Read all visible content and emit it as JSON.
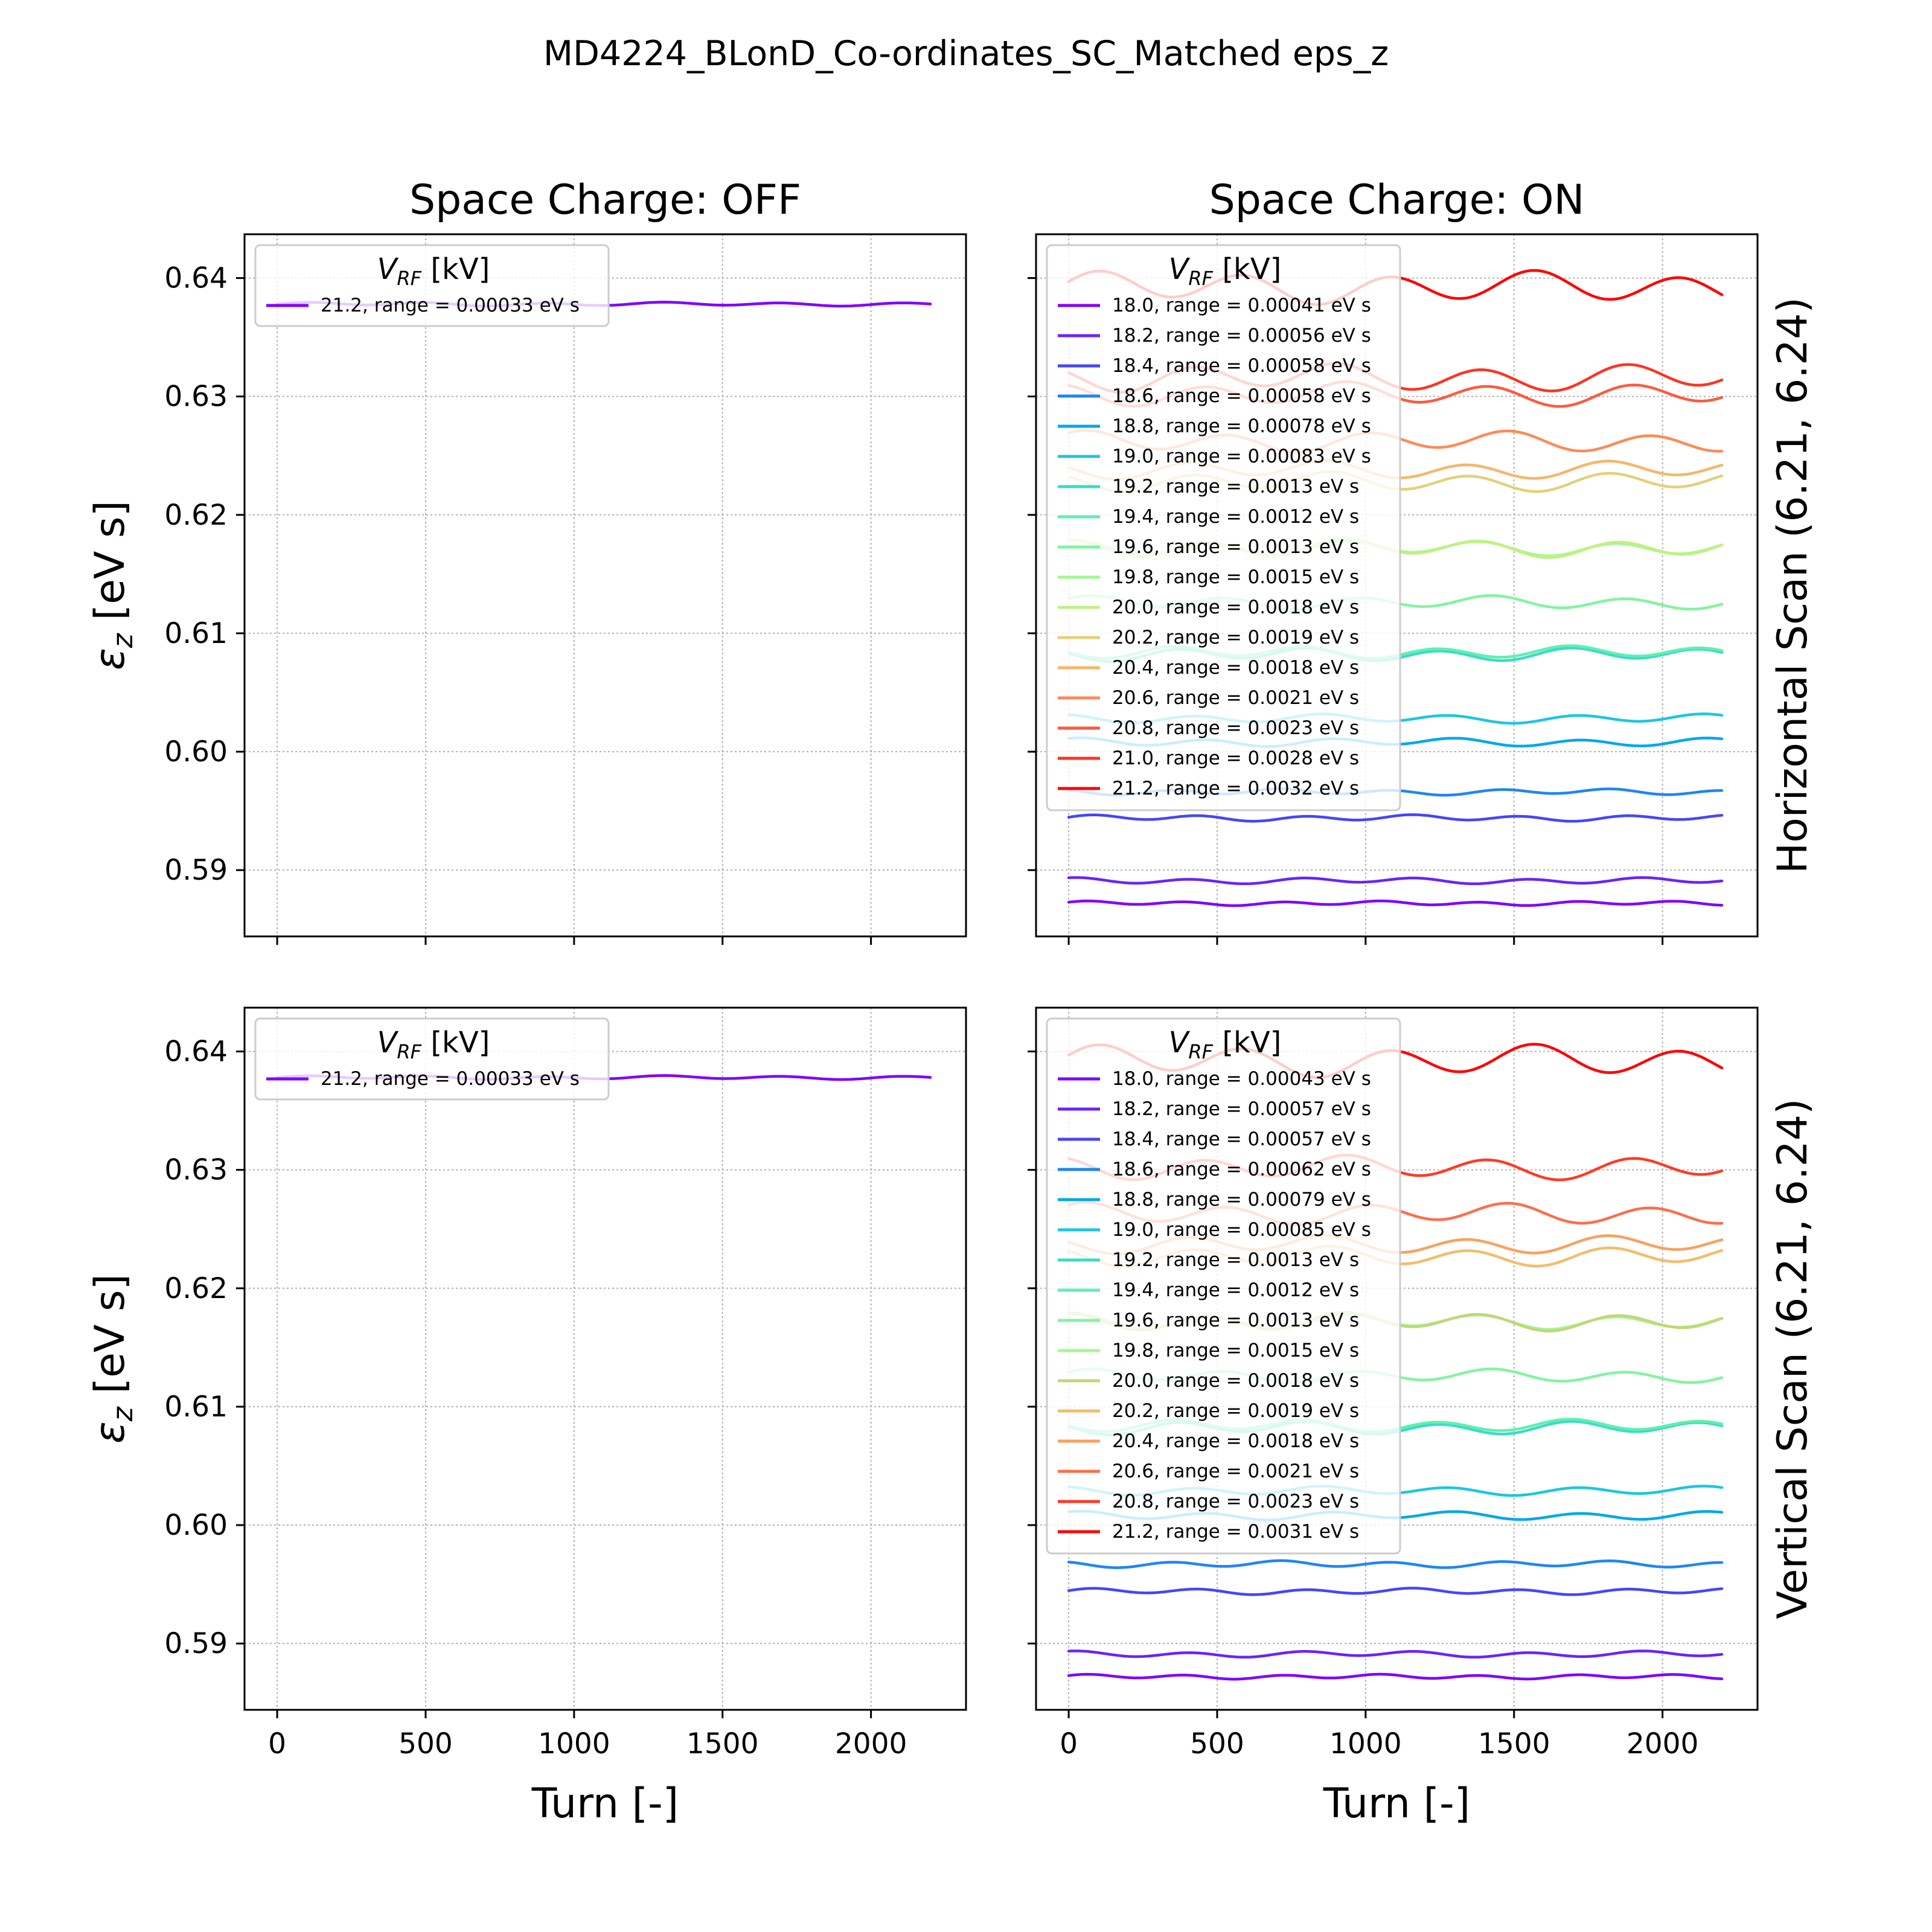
{
  "figure": {
    "title": "MD4224_BLonD_Co-ordinates_SC_Matched eps_z",
    "row_labels": [
      "Horizontal Scan (6.21, 6.24)",
      "Vertical Scan (6.21, 6.24)"
    ]
  },
  "chart_data": [
    {
      "id": "sc-off-horizontal",
      "type": "line",
      "title": "Space Charge: OFF",
      "xlabel": "",
      "ylabel_base": "ε",
      "ylabel_sub": "z",
      "ylabel_unit": " [eV s]",
      "xlim": [
        -110,
        2320
      ],
      "ylim": [
        0.5844,
        0.6437
      ],
      "xticks": [
        0,
        500,
        1000,
        1500,
        2000
      ],
      "yticks": [
        0.59,
        0.6,
        0.61,
        0.62,
        0.63,
        0.64
      ],
      "show_xtick_labels": false,
      "show_ytick_labels": true,
      "grid": true,
      "legend": {
        "location": "upper-left",
        "title_base": "V",
        "title_sub": "RF",
        "title_unit": " [kV]",
        "small": true
      },
      "x_range": [
        0,
        2200
      ],
      "series": [
        {
          "name": "21.2, range = 0.00033 eV s",
          "color": "#8000ff",
          "base": 0.6378,
          "amp": 0.00012,
          "period": 400,
          "phase": 0.0,
          "wiggle": 5e-05
        }
      ]
    },
    {
      "id": "sc-on-horizontal",
      "type": "line",
      "title": "Space Charge: ON",
      "xlabel": "",
      "ylabel_base": "",
      "ylabel_sub": "",
      "ylabel_unit": "",
      "xlim": [
        -110,
        2320
      ],
      "ylim": [
        0.5844,
        0.6437
      ],
      "xticks": [
        0,
        500,
        1000,
        1500,
        2000
      ],
      "yticks": [
        0.59,
        0.6,
        0.61,
        0.62,
        0.63,
        0.64
      ],
      "show_xtick_labels": false,
      "show_ytick_labels": false,
      "grid": true,
      "row_label_index": 0,
      "legend": {
        "location": "upper-left",
        "title_base": "V",
        "title_sub": "RF",
        "title_unit": " [kV]",
        "small": false
      },
      "x_range": [
        0,
        2200
      ],
      "series": [
        {
          "name": "18.0, range = 0.00041 eV s",
          "color": "#8000ff",
          "base": 0.5872,
          "amp": 0.00014,
          "period": 330,
          "phase": 0.4,
          "wiggle": 6e-05
        },
        {
          "name": "18.2, range = 0.00056 eV s",
          "color": "#6a23fe",
          "base": 0.5891,
          "amp": 0.0002,
          "period": 380,
          "phase": 1.1,
          "wiggle": 8e-05
        },
        {
          "name": "18.4, range = 0.00058 eV s",
          "color": "#4645fc",
          "base": 0.5944,
          "amp": 0.0002,
          "period": 360,
          "phase": 0.2,
          "wiggle": 8e-05
        },
        {
          "name": "18.6, range = 0.00058 eV s",
          "color": "#1f86f3",
          "base": 0.5966,
          "amp": 0.0002,
          "period": 370,
          "phase": 2.0,
          "wiggle": 8e-05
        },
        {
          "name": "18.8, range = 0.00078 eV s",
          "color": "#00a8ea",
          "base": 0.6008,
          "amp": 0.00028,
          "period": 420,
          "phase": 0.9,
          "wiggle": 0.0001
        },
        {
          "name": "19.0, range = 0.00083 eV s",
          "color": "#1cc6e1",
          "base": 0.6028,
          "amp": 0.0003,
          "period": 430,
          "phase": 1.7,
          "wiggle": 0.0001
        },
        {
          "name": "19.2, range = 0.0013 eV s",
          "color": "#3adcc5",
          "base": 0.6082,
          "amp": 0.00045,
          "period": 440,
          "phase": 2.6,
          "wiggle": 0.00015
        },
        {
          "name": "19.4, range = 0.0012 eV s",
          "color": "#5ff0b0",
          "base": 0.6084,
          "amp": 0.00042,
          "period": 445,
          "phase": 2.9,
          "wiggle": 0.00014
        },
        {
          "name": "19.6, range = 0.0013 eV s",
          "color": "#82f59f",
          "base": 0.6126,
          "amp": 0.00045,
          "period": 450,
          "phase": 0.5,
          "wiggle": 0.00015
        },
        {
          "name": "19.8, range = 0.0015 eV s",
          "color": "#a0fa90",
          "base": 0.6172,
          "amp": 0.00052,
          "period": 455,
          "phase": 1.3,
          "wiggle": 0.00017
        },
        {
          "name": "20.0, range = 0.0018 eV s",
          "color": "#c3f080",
          "base": 0.6172,
          "amp": 0.00062,
          "period": 460,
          "phase": 1.5,
          "wiggle": 0.0002
        },
        {
          "name": "20.2, range = 0.0019 eV s",
          "color": "#e2d17a",
          "base": 0.6228,
          "amp": 0.00066,
          "period": 465,
          "phase": 2.2,
          "wiggle": 0.00021
        },
        {
          "name": "20.4, range = 0.0018 eV s",
          "color": "#f5b76a",
          "base": 0.6238,
          "amp": 0.00062,
          "period": 470,
          "phase": 2.5,
          "wiggle": 0.0002
        },
        {
          "name": "20.6, range = 0.0021 eV s",
          "color": "#fe8a57",
          "base": 0.6262,
          "amp": 0.00072,
          "period": 475,
          "phase": 0.8,
          "wiggle": 0.00023
        },
        {
          "name": "20.8, range = 0.0023 eV s",
          "color": "#fe5a3f",
          "base": 0.6302,
          "amp": 0.0008,
          "period": 480,
          "phase": 1.9,
          "wiggle": 0.00025
        },
        {
          "name": "21.0, range = 0.0028 eV s",
          "color": "#fe3422",
          "base": 0.6316,
          "amp": 0.00095,
          "period": 485,
          "phase": 2.4,
          "wiggle": 0.0003
        },
        {
          "name": "21.2, range = 0.0032 eV s",
          "color": "#ff0000",
          "base": 0.6392,
          "amp": 0.0011,
          "period": 490,
          "phase": 0.3,
          "wiggle": 0.00035
        }
      ]
    },
    {
      "id": "sc-off-vertical",
      "type": "line",
      "title": "",
      "xlabel": "Turn [-]",
      "ylabel_base": "ε",
      "ylabel_sub": "z",
      "ylabel_unit": " [eV s]",
      "xlim": [
        -110,
        2320
      ],
      "ylim": [
        0.5844,
        0.6437
      ],
      "xticks": [
        0,
        500,
        1000,
        1500,
        2000
      ],
      "yticks": [
        0.59,
        0.6,
        0.61,
        0.62,
        0.63,
        0.64
      ],
      "show_xtick_labels": true,
      "show_ytick_labels": true,
      "grid": true,
      "legend": {
        "location": "upper-left",
        "title_base": "V",
        "title_sub": "RF",
        "title_unit": " [kV]",
        "small": true
      },
      "x_range": [
        0,
        2200
      ],
      "series": [
        {
          "name": "21.2, range = 0.00033 eV s",
          "color": "#8000ff",
          "base": 0.6378,
          "amp": 0.00012,
          "period": 400,
          "phase": 0.0,
          "wiggle": 5e-05
        }
      ]
    },
    {
      "id": "sc-on-vertical",
      "type": "line",
      "title": "",
      "xlabel": "Turn [-]",
      "ylabel_base": "",
      "ylabel_sub": "",
      "ylabel_unit": "",
      "xlim": [
        -110,
        2320
      ],
      "ylim": [
        0.5844,
        0.6437
      ],
      "xticks": [
        0,
        500,
        1000,
        1500,
        2000
      ],
      "yticks": [
        0.59,
        0.6,
        0.61,
        0.62,
        0.63,
        0.64
      ],
      "show_xtick_labels": true,
      "show_ytick_labels": false,
      "grid": true,
      "row_label_index": 1,
      "legend": {
        "location": "upper-left",
        "title_base": "V",
        "title_sub": "RF",
        "title_unit": " [kV]",
        "small": false
      },
      "x_range": [
        0,
        2200
      ],
      "series": [
        {
          "name": "18.0, range = 0.00043 eV s",
          "color": "#8000ff",
          "base": 0.5872,
          "amp": 0.00015,
          "period": 330,
          "phase": 0.4,
          "wiggle": 6e-05
        },
        {
          "name": "18.2, range = 0.00057 eV s",
          "color": "#6a23fe",
          "base": 0.5891,
          "amp": 0.0002,
          "period": 380,
          "phase": 1.1,
          "wiggle": 8e-05
        },
        {
          "name": "18.4, range = 0.00057 eV s",
          "color": "#4645fc",
          "base": 0.5944,
          "amp": 0.0002,
          "period": 360,
          "phase": 0.2,
          "wiggle": 8e-05
        },
        {
          "name": "18.6, range = 0.00062 eV s",
          "color": "#1f86f3",
          "base": 0.5967,
          "amp": 0.00022,
          "period": 370,
          "phase": 2.0,
          "wiggle": 8e-05
        },
        {
          "name": "18.8, range = 0.00079 eV s",
          "color": "#00a8ea",
          "base": 0.6008,
          "amp": 0.00028,
          "period": 420,
          "phase": 0.9,
          "wiggle": 0.0001
        },
        {
          "name": "19.0, range = 0.00085 eV s",
          "color": "#1cc6e1",
          "base": 0.6029,
          "amp": 0.0003,
          "period": 430,
          "phase": 1.7,
          "wiggle": 0.0001
        },
        {
          "name": "19.2, range = 0.0013 eV s",
          "color": "#3adcc5",
          "base": 0.6082,
          "amp": 0.00045,
          "period": 440,
          "phase": 2.6,
          "wiggle": 0.00015
        },
        {
          "name": "19.4, range = 0.0012 eV s",
          "color": "#5ff0b0",
          "base": 0.6084,
          "amp": 0.00042,
          "period": 445,
          "phase": 2.9,
          "wiggle": 0.00014
        },
        {
          "name": "19.6, range = 0.0013 eV s",
          "color": "#82f59f",
          "base": 0.6126,
          "amp": 0.00045,
          "period": 450,
          "phase": 0.5,
          "wiggle": 0.00015
        },
        {
          "name": "19.8, range = 0.0015 eV s",
          "color": "#a0fa90",
          "base": 0.6172,
          "amp": 0.00052,
          "period": 455,
          "phase": 1.3,
          "wiggle": 0.00017
        },
        {
          "name": "20.0, range = 0.0018 eV s",
          "color": "#c3d67a",
          "base": 0.6172,
          "amp": 0.00062,
          "period": 460,
          "phase": 1.5,
          "wiggle": 0.0002
        },
        {
          "name": "20.2, range = 0.0019 eV s",
          "color": "#f2bd6b",
          "base": 0.6227,
          "amp": 0.00066,
          "period": 465,
          "phase": 2.2,
          "wiggle": 0.00021
        },
        {
          "name": "20.4, range = 0.0018 eV s",
          "color": "#f9a15d",
          "base": 0.6237,
          "amp": 0.00062,
          "period": 470,
          "phase": 2.5,
          "wiggle": 0.0002
        },
        {
          "name": "20.6, range = 0.0021 eV s",
          "color": "#fe6e4a",
          "base": 0.6263,
          "amp": 0.00072,
          "period": 475,
          "phase": 0.8,
          "wiggle": 0.00023
        },
        {
          "name": "20.8, range = 0.0023 eV s",
          "color": "#fe3b26",
          "base": 0.6302,
          "amp": 0.0008,
          "period": 480,
          "phase": 1.9,
          "wiggle": 0.00025
        },
        {
          "name": "21.2, range = 0.0031 eV s",
          "color": "#ff0000",
          "base": 0.6392,
          "amp": 0.00108,
          "period": 490,
          "phase": 0.3,
          "wiggle": 0.00034
        }
      ]
    }
  ]
}
